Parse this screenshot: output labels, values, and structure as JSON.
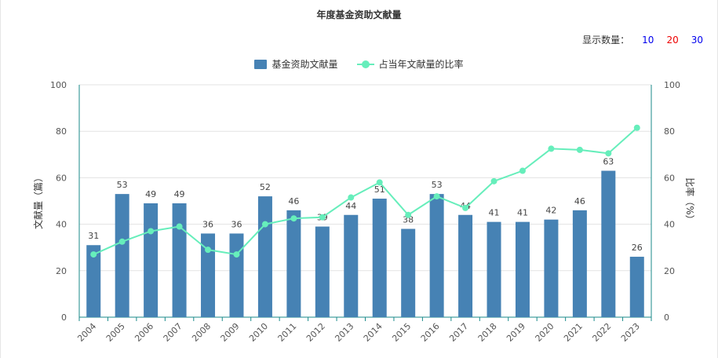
{
  "title": "年度基金资助文献量",
  "display_count": {
    "label": "显示数量：",
    "options": [
      {
        "label": "10",
        "color": "#0000ee"
      },
      {
        "label": "20",
        "color": "#ee0000"
      },
      {
        "label": "30",
        "color": "#0000ee"
      }
    ]
  },
  "legend": {
    "bar": "基金资助文献量",
    "line": "占当年文献量的比率"
  },
  "colors": {
    "bar": "#4682b4",
    "line": "#66eebb",
    "axis": "#1a8a8a",
    "grid": "#e3e3e3"
  },
  "chart_data": {
    "type": "bar",
    "title": "年度基金资助文献量",
    "categories": [
      "2004",
      "2005",
      "2006",
      "2007",
      "2008",
      "2009",
      "2010",
      "2011",
      "2012",
      "2013",
      "2014",
      "2015",
      "2016",
      "2017",
      "2018",
      "2019",
      "2020",
      "2021",
      "2022",
      "2023"
    ],
    "series": [
      {
        "name": "基金资助文献量",
        "type": "bar",
        "axis": "left",
        "values": [
          31,
          53,
          49,
          49,
          36,
          36,
          52,
          46,
          39,
          44,
          51,
          38,
          53,
          44,
          41,
          41,
          42,
          46,
          63,
          26
        ]
      },
      {
        "name": "占当年文献量的比率",
        "type": "line",
        "axis": "right",
        "values": [
          27,
          32.5,
          37,
          39,
          29,
          27,
          40,
          42.5,
          43,
          51.5,
          58,
          44,
          52,
          47,
          58.5,
          63,
          72.5,
          72,
          70.5,
          81.5
        ]
      }
    ],
    "ylabel": "文献量（篇）",
    "ylabel_right": "比率（%）",
    "ylim": [
      0,
      100
    ],
    "ylim_right": [
      0,
      100
    ],
    "yticks": [
      0,
      20,
      40,
      60,
      80,
      100
    ],
    "yticks_right": [
      0,
      20,
      40,
      60,
      80,
      100
    ],
    "grid": true,
    "legend_position": "top-center"
  }
}
